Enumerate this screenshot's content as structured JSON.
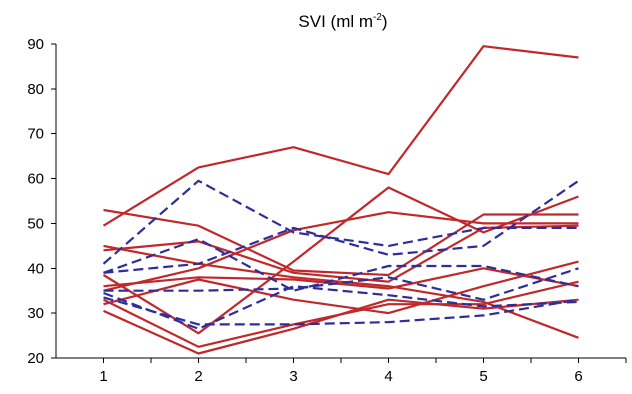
{
  "chart_data": {
    "type": "line",
    "title_main": "SVI (ml m",
    "title_sup": "-2",
    "title_end": ")",
    "xlabel": "",
    "ylabel": "",
    "x": [
      1,
      2,
      3,
      4,
      5,
      6
    ],
    "xlim": [
      0.5,
      6.5
    ],
    "ylim": [
      20,
      90
    ],
    "yticks": [
      20,
      30,
      40,
      50,
      60,
      70,
      80,
      90
    ],
    "xticks": [
      1,
      2,
      3,
      4,
      5,
      6
    ],
    "grid": false,
    "legend": "none",
    "colors": {
      "solid": "#c0292b",
      "dashed": "#2e2e9a"
    },
    "series": [
      {
        "style": "solid",
        "values": [
          49.5,
          62.5,
          67.0,
          61.0,
          89.5,
          87.0
        ]
      },
      {
        "style": "solid",
        "values": [
          53.0,
          49.5,
          39.5,
          38.5,
          52.0,
          52.0
        ]
      },
      {
        "style": "solid",
        "values": [
          45.0,
          41.0,
          38.0,
          36.0,
          32.5,
          24.5
        ]
      },
      {
        "style": "solid",
        "values": [
          44.0,
          46.0,
          39.0,
          37.0,
          49.0,
          49.5
        ]
      },
      {
        "style": "solid",
        "values": [
          36.0,
          38.0,
          37.5,
          35.5,
          40.0,
          36.0
        ]
      },
      {
        "style": "solid",
        "values": [
          32.0,
          37.5,
          33.0,
          30.0,
          36.0,
          41.5
        ]
      },
      {
        "style": "solid",
        "values": [
          30.5,
          21.0,
          26.5,
          33.0,
          31.0,
          33.0
        ]
      },
      {
        "style": "solid",
        "values": [
          33.0,
          22.5,
          27.5,
          32.0,
          32.0,
          37.0
        ]
      },
      {
        "style": "solid",
        "values": [
          38.5,
          25.5,
          41.5,
          58.0,
          48.0,
          56.0
        ]
      },
      {
        "style": "solid",
        "values": [
          35.0,
          40.0,
          48.5,
          52.5,
          50.0,
          50.0
        ]
      },
      {
        "style": "dashed",
        "values": [
          41.0,
          59.5,
          48.0,
          45.0,
          49.0,
          49.0
        ]
      },
      {
        "style": "dashed",
        "values": [
          39.0,
          41.0,
          49.0,
          43.0,
          45.0,
          59.5
        ]
      },
      {
        "style": "dashed",
        "values": [
          39.0,
          46.5,
          35.0,
          40.5,
          40.5,
          36.0
        ]
      },
      {
        "style": "dashed",
        "values": [
          35.0,
          35.0,
          35.5,
          38.0,
          33.0,
          40.0
        ]
      },
      {
        "style": "dashed",
        "values": [
          34.5,
          26.5,
          36.0,
          34.0,
          31.5,
          32.5
        ]
      },
      {
        "style": "dashed",
        "values": [
          33.5,
          27.5,
          27.5,
          28.0,
          29.5,
          33.0
        ]
      }
    ]
  }
}
